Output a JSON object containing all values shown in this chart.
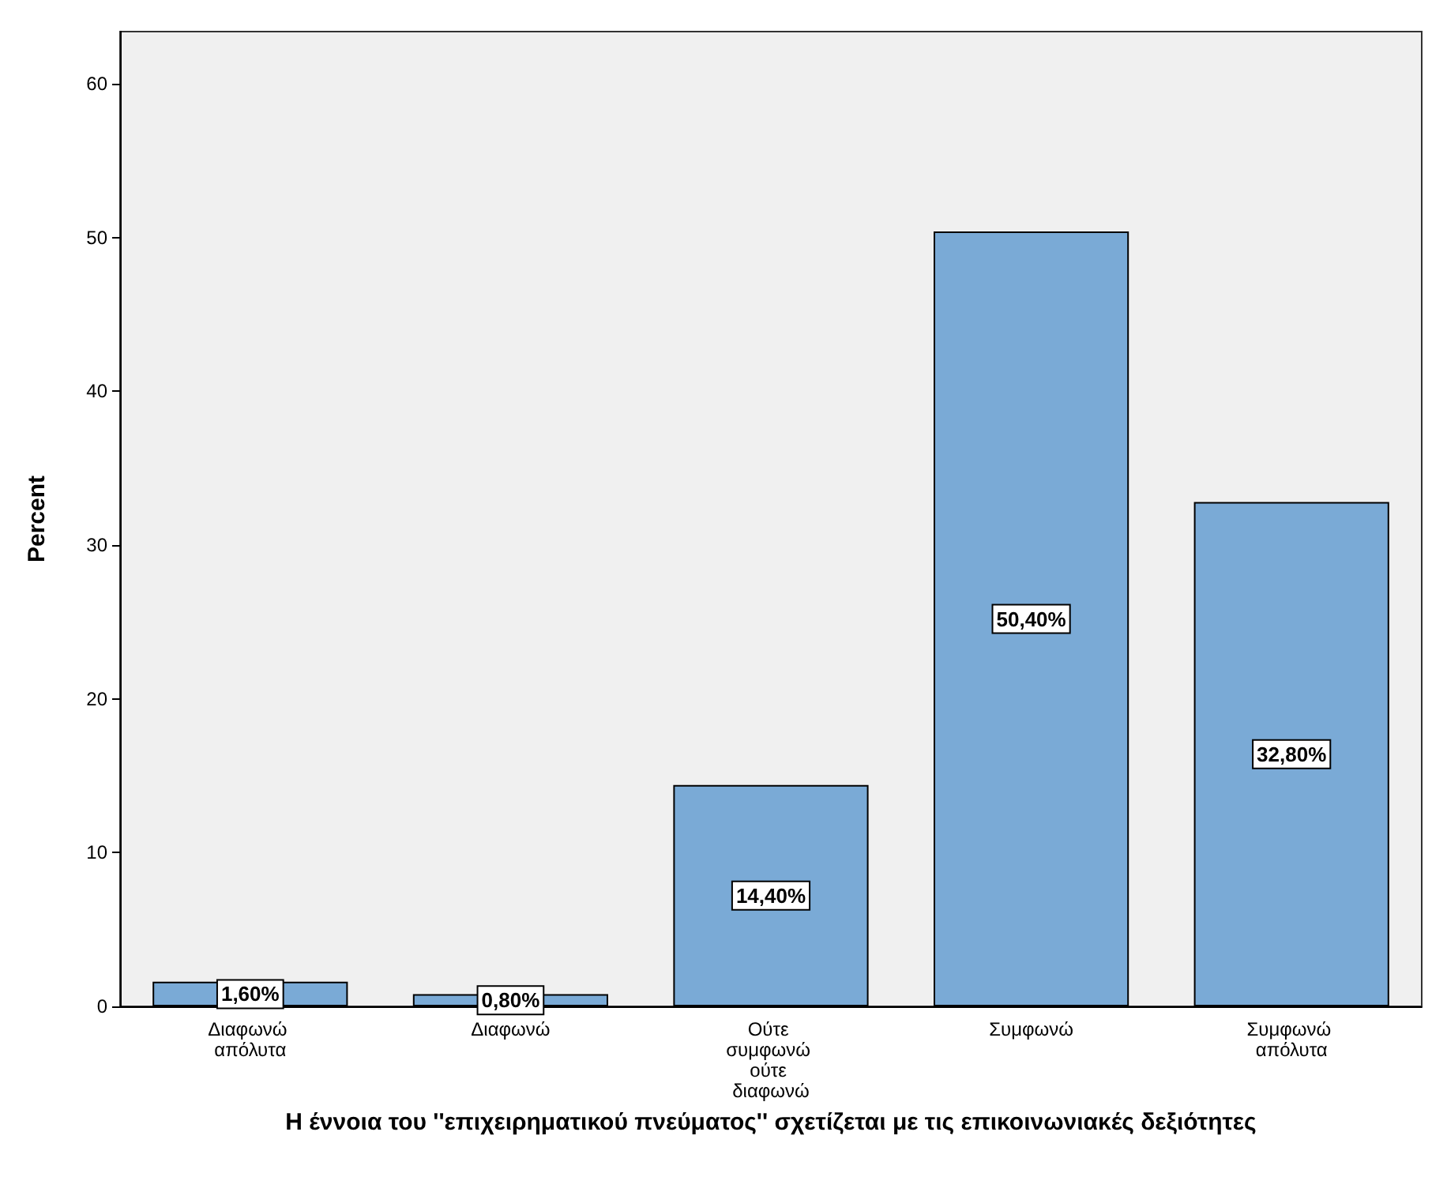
{
  "chart_data": {
    "type": "bar",
    "xlabel": "Η έννοια του ''επιχειρηματικού πνεύματος'' σχετίζεται με τις επικοινωνιακές δεξιότητες",
    "ylabel": "Percent",
    "categories": [
      "Διαφωνώ απόλυτα",
      "Διαφωνώ",
      "Ούτε συμφωνώ ούτε διαφωνώ",
      "Συμφωνώ",
      "Συμφωνώ απόλυτα"
    ],
    "values": [
      1.6,
      0.8,
      14.4,
      50.4,
      32.8
    ],
    "value_labels": [
      "1,60%",
      "0,80%",
      "14,40%",
      "50,40%",
      "32,80%"
    ],
    "color": "#7aaad6",
    "ylim": [
      0,
      63.4
    ],
    "yticks": [
      0,
      10,
      20,
      30,
      40,
      50,
      60
    ],
    "grid": false
  }
}
